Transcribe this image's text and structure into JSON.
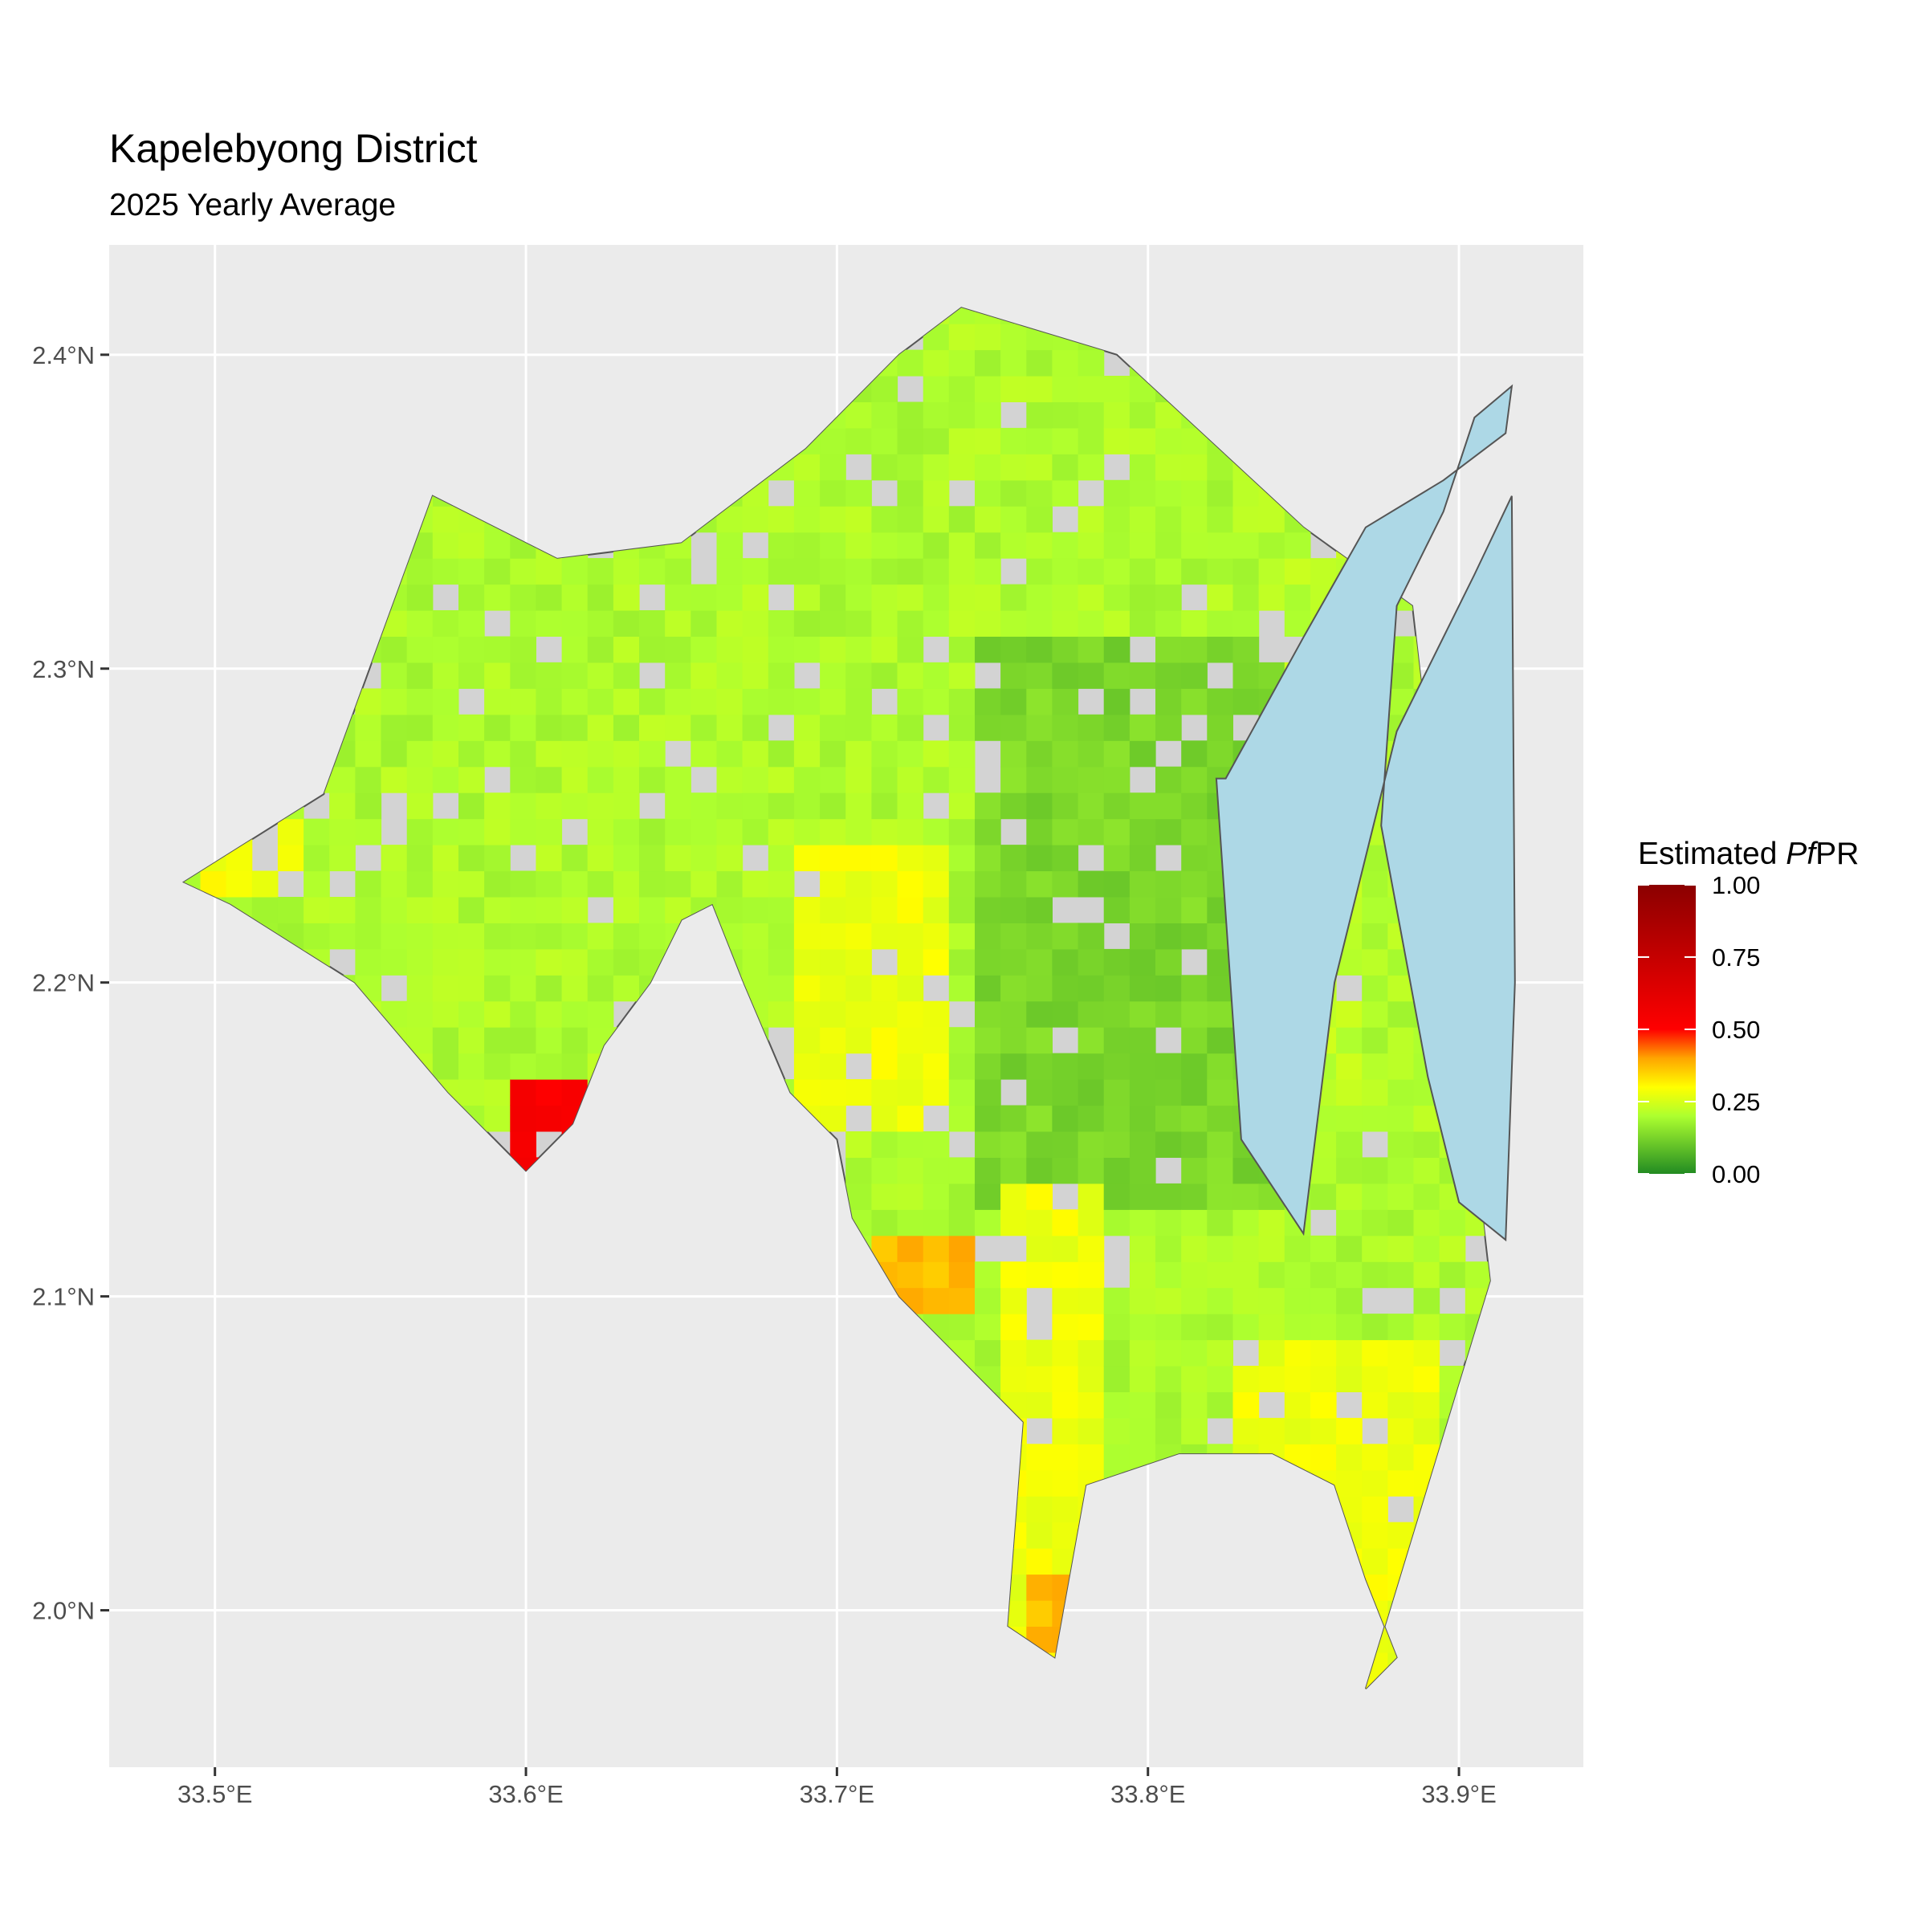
{
  "title": "Kapelebyong District",
  "subtitle": "2025 Yearly Average",
  "axes": {
    "x": {
      "range": [
        33.466,
        33.94
      ],
      "ticks": [
        33.5,
        33.6,
        33.7,
        33.8,
        33.9
      ],
      "tick_labels": [
        "33.5°E",
        "33.6°E",
        "33.7°E",
        "33.8°E",
        "33.9°E"
      ]
    },
    "y": {
      "range": [
        1.95,
        2.435
      ],
      "ticks": [
        2.0,
        2.1,
        2.2,
        2.3,
        2.4
      ],
      "tick_labels": [
        "2.0°N",
        "2.1°N",
        "2.2°N",
        "2.3°N",
        "2.4°N"
      ]
    }
  },
  "legend": {
    "title_prefix": "Estimated ",
    "title_italic": "Pf",
    "title_suffix": "PR",
    "labels": [
      "1.00",
      "0.75",
      "0.50",
      "0.25",
      "0.00"
    ],
    "placement": "right"
  },
  "colors": {
    "panel": "#ebebeb",
    "district_fill": "#d3d3d3",
    "water": "#add8e6",
    "scale": [
      "#228b22",
      "#adff2f",
      "#ffff00",
      "#ffa500",
      "#ff0000",
      "#8b0000"
    ]
  },
  "map_data": {
    "variable": "PfPR",
    "region_lon": [
      33.49,
      33.535,
      33.57,
      33.61,
      33.65,
      33.69,
      33.72,
      33.74,
      33.79,
      33.85,
      33.885,
      33.91,
      33.89,
      33.87,
      33.88,
      33.87,
      33.86,
      33.84,
      33.81,
      33.78,
      33.77,
      33.755,
      33.76,
      33.74,
      33.72,
      33.705,
      33.7,
      33.685,
      33.67,
      33.66,
      33.65,
      33.64,
      33.625,
      33.615,
      33.6,
      33.575,
      33.545,
      33.505,
      33.49
    ],
    "region_lat": [
      2.232,
      2.26,
      2.355,
      2.335,
      2.34,
      2.37,
      2.4,
      2.415,
      2.4,
      2.345,
      2.32,
      2.105,
      2.04,
      1.975,
      1.985,
      2.01,
      2.04,
      2.05,
      2.05,
      2.04,
      1.985,
      1.995,
      2.06,
      2.08,
      2.1,
      2.125,
      2.15,
      2.165,
      2.2,
      2.225,
      2.22,
      2.2,
      2.18,
      2.155,
      2.14,
      2.165,
      2.2,
      2.225,
      2.232
    ],
    "lake_lon": [
      33.825,
      33.85,
      33.87,
      33.895,
      33.915,
      33.917,
      33.905,
      33.895,
      33.88,
      33.875,
      33.89,
      33.9,
      33.915,
      33.918,
      33.917,
      33.905,
      33.88,
      33.86,
      33.85,
      33.83,
      33.822
    ],
    "lake_lat": [
      2.265,
      2.31,
      2.345,
      2.36,
      2.375,
      2.39,
      2.38,
      2.35,
      2.32,
      2.25,
      2.17,
      2.13,
      2.118,
      2.2,
      2.355,
      2.33,
      2.28,
      2.2,
      2.12,
      2.15,
      2.265
    ],
    "hotspots": [
      {
        "lon": 33.6,
        "lat": 2.148,
        "value": 0.55
      },
      {
        "lon": 33.61,
        "lat": 2.14,
        "value": 0.5
      },
      {
        "lon": 33.723,
        "lat": 2.105,
        "value": 0.4
      },
      {
        "lon": 33.768,
        "lat": 1.995,
        "value": 0.4
      },
      {
        "lon": 33.507,
        "lat": 2.237,
        "value": 0.32
      }
    ]
  }
}
